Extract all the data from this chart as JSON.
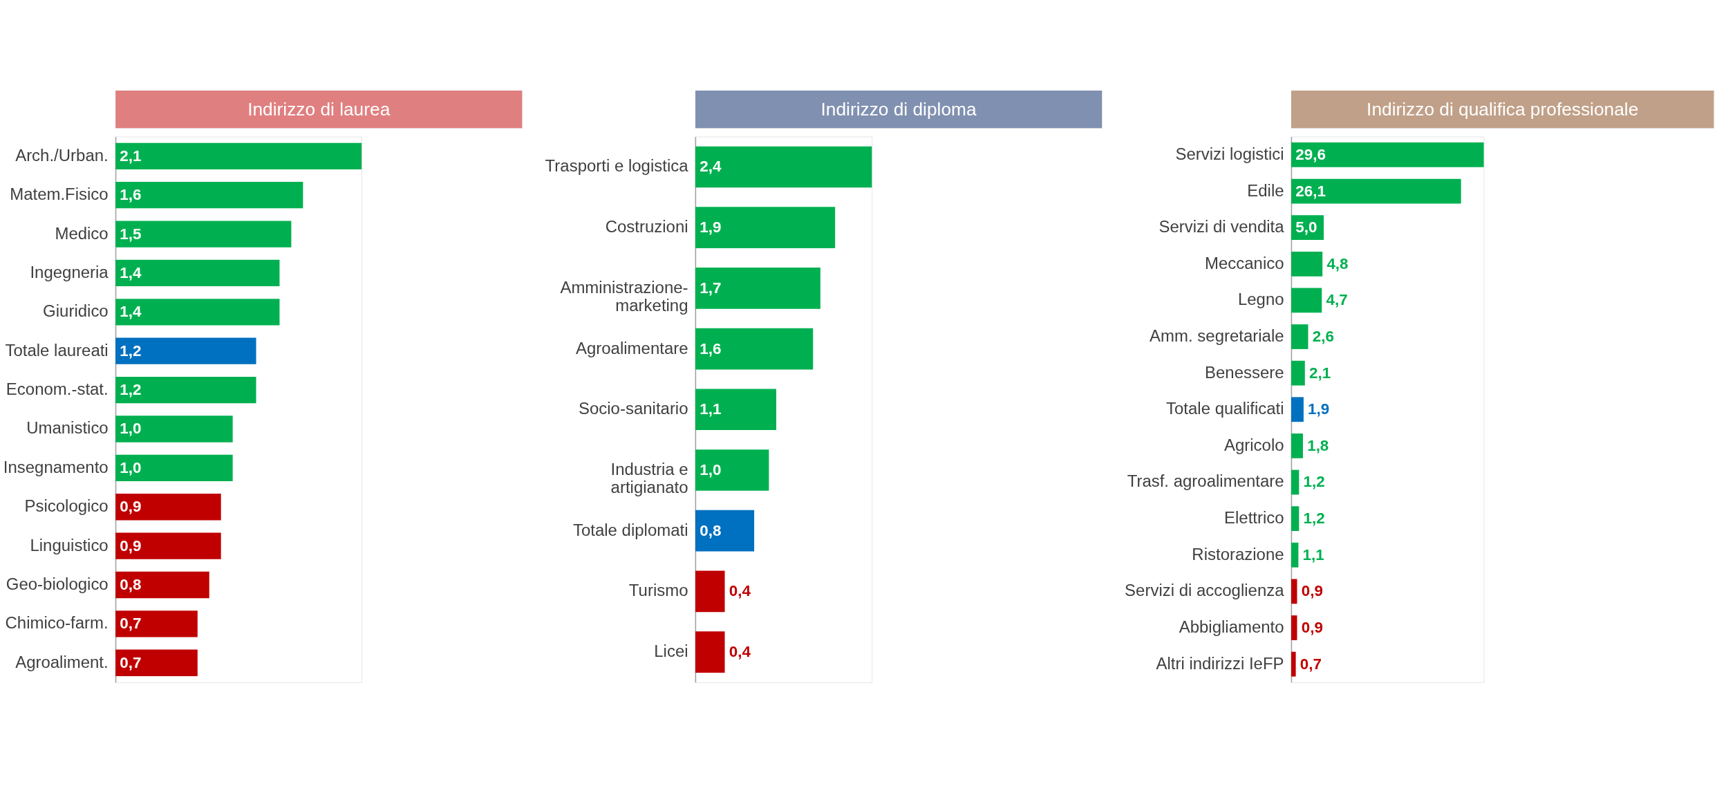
{
  "chart_data": [
    {
      "type": "bar",
      "orientation": "horizontal",
      "title": "Indirizzo di laurea",
      "categories": [
        "Arch./Urban.",
        "Matem.Fisico",
        "Medico",
        "Ingegneria",
        "Giuridico",
        "Totale laureati",
        "Econom.-stat.",
        "Umanistico",
        "Insegnamento",
        "Psicologico",
        "Linguistico",
        "Geo-biologico",
        "Chimico-farm.",
        "Agroaliment."
      ],
      "values": [
        2.1,
        1.6,
        1.5,
        1.4,
        1.4,
        1.2,
        1.2,
        1.0,
        1.0,
        0.9,
        0.9,
        0.8,
        0.7,
        0.7
      ],
      "value_labels": [
        "2,1",
        "1,6",
        "1,5",
        "1,4",
        "1,4",
        "1,2",
        "1,2",
        "1,0",
        "1,0",
        "0,9",
        "0,9",
        "0,8",
        "0,7",
        "0,7"
      ],
      "colors": [
        "#00b050",
        "#00b050",
        "#00b050",
        "#00b050",
        "#00b050",
        "#0070c0",
        "#00b050",
        "#00b050",
        "#00b050",
        "#c00000",
        "#c00000",
        "#c00000",
        "#c00000",
        "#c00000"
      ]
    },
    {
      "type": "bar",
      "orientation": "horizontal",
      "title": "Indirizzo di diploma",
      "categories": [
        "Trasporti e logistica",
        "Costruzioni",
        "Amministrazione-\nmarketing",
        "Agroalimentare",
        "Socio-sanitario",
        "Industria e\nartigianato",
        "Totale diplomati",
        "Turismo",
        "Licei"
      ],
      "values": [
        2.4,
        1.9,
        1.7,
        1.6,
        1.1,
        1.0,
        0.8,
        0.4,
        0.4
      ],
      "value_labels": [
        "2,4",
        "1,9",
        "1,7",
        "1,6",
        "1,1",
        "1,0",
        "0,8",
        "0,4",
        "0,4"
      ],
      "colors": [
        "#00b050",
        "#00b050",
        "#00b050",
        "#00b050",
        "#00b050",
        "#00b050",
        "#0070c0",
        "#c00000",
        "#c00000"
      ]
    },
    {
      "type": "bar",
      "orientation": "horizontal",
      "title": "Indirizzo di qualifica professionale",
      "categories": [
        "Servizi logistici",
        "Edile",
        "Servizi di vendita",
        "Meccanico",
        "Legno",
        "Amm. segretariale",
        "Benessere",
        "Totale qualificati",
        "Agricolo",
        "Trasf. agroalimentare",
        "Elettrico",
        "Ristorazione",
        "Servizi di accoglienza",
        "Abbigliamento",
        "Altri indirizzi IeFP"
      ],
      "values": [
        29.6,
        26.1,
        5.0,
        4.8,
        4.7,
        2.6,
        2.1,
        1.9,
        1.8,
        1.2,
        1.2,
        1.1,
        0.9,
        0.9,
        0.7
      ],
      "value_labels": [
        "29,6",
        "26,1",
        "5,0",
        "4,8",
        "4,7",
        "2,6",
        "2,1",
        "1,9",
        "1,8",
        "1,2",
        "1,2",
        "1,1",
        "0,9",
        "0,9",
        "0,7"
      ],
      "colors": [
        "#00b050",
        "#00b050",
        "#00b050",
        "#00b050",
        "#00b050",
        "#00b050",
        "#00b050",
        "#0070c0",
        "#00b050",
        "#00b050",
        "#00b050",
        "#00b050",
        "#c00000",
        "#c00000",
        "#c00000"
      ]
    }
  ]
}
